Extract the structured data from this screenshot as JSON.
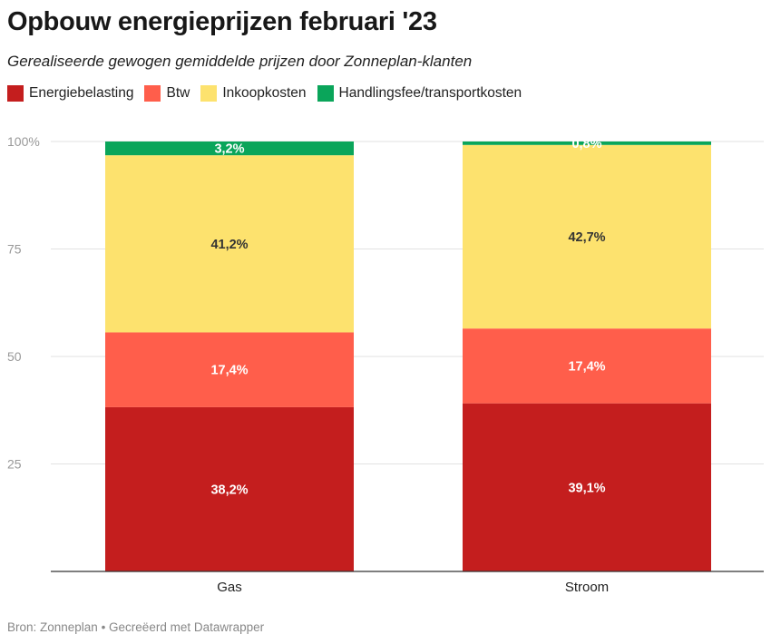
{
  "chart_data": {
    "type": "bar",
    "stacked": true,
    "title": "Opbouw energieprijzen februari '23",
    "subtitle": "Gerealiseerde gewogen gemiddelde prijzen door Zonneplan-klanten",
    "categories": [
      "Gas",
      "Stroom"
    ],
    "series": [
      {
        "name": "Energiebelasting",
        "color": "#c41e1e",
        "values": [
          38.2,
          39.1
        ],
        "labels": [
          "38,2%",
          "39,1%"
        ],
        "label_color": "#ffffff"
      },
      {
        "name": "Btw",
        "color": "#ff5e4b",
        "values": [
          17.4,
          17.4
        ],
        "labels": [
          "17,4%",
          "17,4%"
        ],
        "label_color": "#ffffff"
      },
      {
        "name": "Inkoopkosten",
        "color": "#fde26e",
        "values": [
          41.2,
          42.7
        ],
        "labels": [
          "41,2%",
          "42,7%"
        ],
        "label_color": "#333333"
      },
      {
        "name": "Handlingsfee/transportkosten",
        "color": "#0aa55a",
        "values": [
          3.2,
          0.8
        ],
        "labels": [
          "3,2%",
          "0,8%"
        ],
        "label_color": "#ffffff"
      }
    ],
    "yticks": [
      {
        "value": 100,
        "label": "100%"
      },
      {
        "value": 75,
        "label": "75"
      },
      {
        "value": 50,
        "label": "50"
      },
      {
        "value": 25,
        "label": "25"
      }
    ],
    "ylim": [
      0,
      100
    ],
    "grid": true,
    "legend_position": "top-left"
  },
  "footer": "Bron: Zonneplan • Gecreëerd met Datawrapper"
}
